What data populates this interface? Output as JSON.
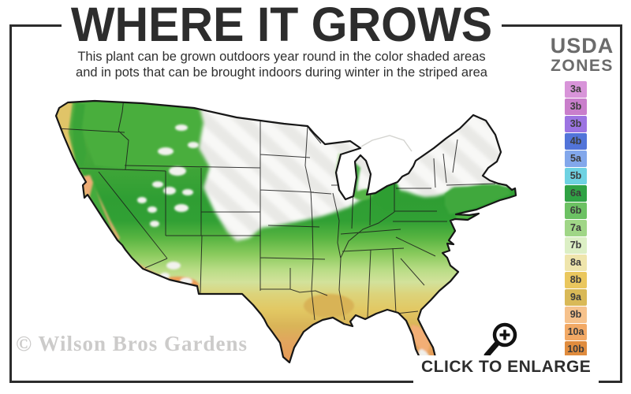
{
  "title": "WHERE IT GROWS",
  "subtitle": {
    "line1": "This plant can be grown outdoors year round in the color shaded areas",
    "line2": "and in pots that can be brought indoors during winter in the striped area"
  },
  "legend": {
    "heading_top": "USDA",
    "heading_bottom": "ZONES",
    "zones": [
      {
        "label": "3a",
        "color": "#d894d9"
      },
      {
        "label": "3b",
        "color": "#c97ecb"
      },
      {
        "label": "3b",
        "color": "#9c74e2"
      },
      {
        "label": "4b",
        "color": "#5274d9"
      },
      {
        "label": "5a",
        "color": "#82a7eb"
      },
      {
        "label": "5b",
        "color": "#6ed2e2"
      },
      {
        "label": "6a",
        "color": "#2fa244"
      },
      {
        "label": "6b",
        "color": "#6cc163"
      },
      {
        "label": "7a",
        "color": "#a0d687"
      },
      {
        "label": "7b",
        "color": "#dcefc5"
      },
      {
        "label": "8a",
        "color": "#efe5ac"
      },
      {
        "label": "8b",
        "color": "#eac75e"
      },
      {
        "label": "9a",
        "color": "#d9b957"
      },
      {
        "label": "9b",
        "color": "#f6c28c"
      },
      {
        "label": "10a",
        "color": "#f2a965"
      },
      {
        "label": "10b",
        "color": "#e08c3e"
      }
    ]
  },
  "map": {
    "depicts": "United States growing-zone map",
    "striped_area_color": "#e9e9e6",
    "band_colors": [
      "#2f9e33",
      "#57b441",
      "#8aca5d",
      "#d2e29b",
      "#dcd37a",
      "#e2c863",
      "#d9b458",
      "#ea9350"
    ]
  },
  "watermark": "© Wilson Bros Gardens",
  "enlarge": {
    "label": "CLICK TO ENLARGE"
  },
  "frame_color": "#2c2c2c"
}
